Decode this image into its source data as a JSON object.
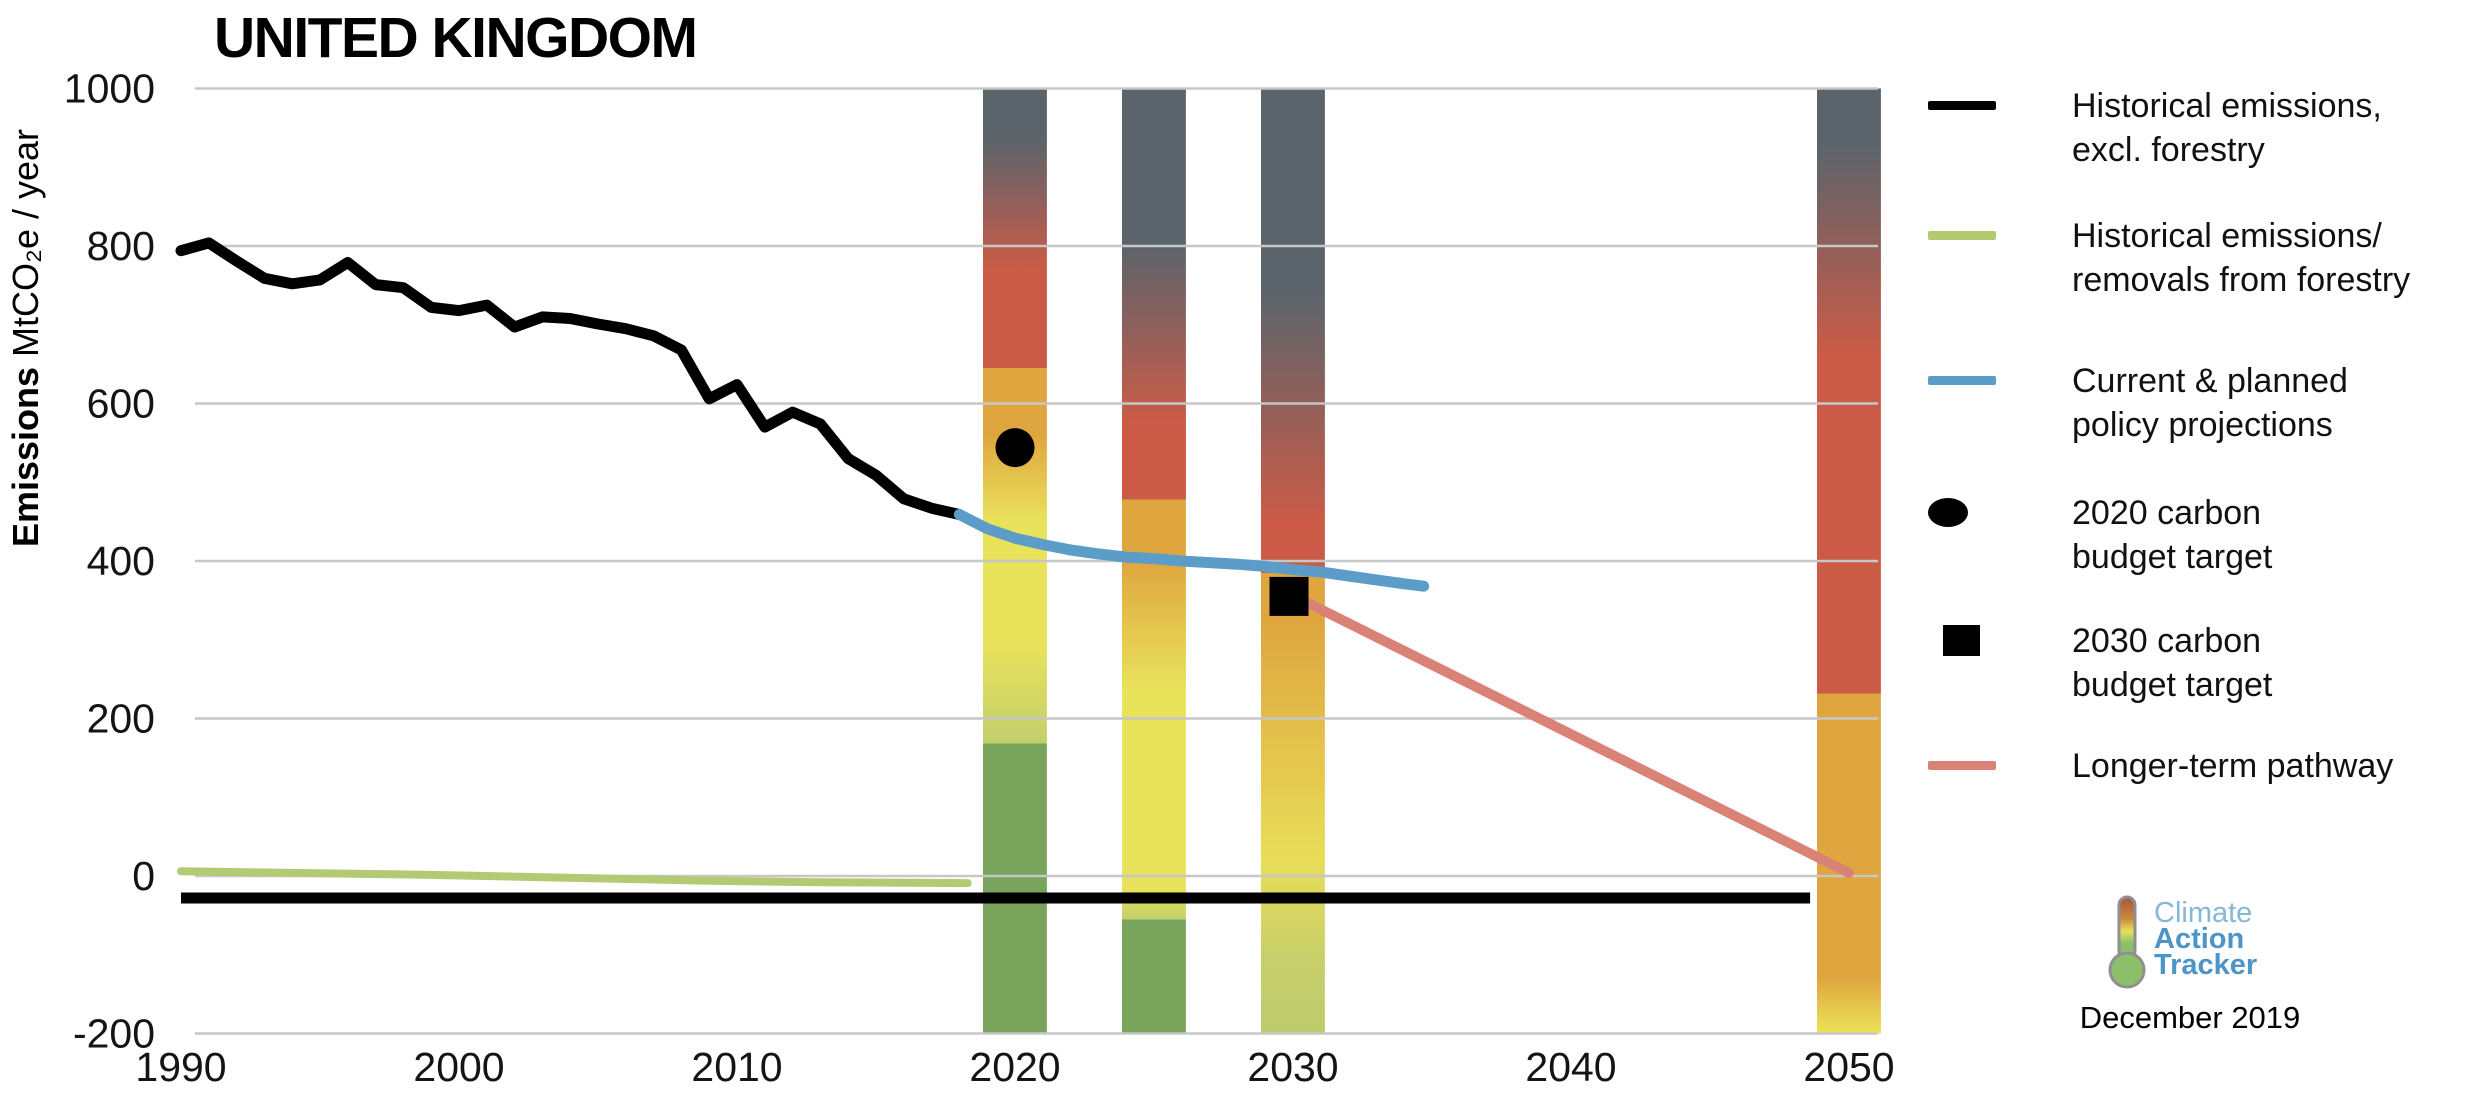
{
  "title": "UNITED KINGDOM",
  "y_axis": {
    "label_bold": "Emissions",
    "label_rest": " MtCO₂e / year"
  },
  "colors": {
    "grid": "#c7c7c7",
    "slate": "#5c646b",
    "red": "#cb5b47",
    "orange": "#dfa63f",
    "yellow": "#e9e25b",
    "yellow_green": "#c2cf6b",
    "green": "#78a45b",
    "historical_black": "#000000",
    "forestry_green": "#b3ca73",
    "projection_blue": "#5b9dc8",
    "pathway_salmon": "#d98376",
    "logo_light_blue": "#85b7d8",
    "logo_blue": "#4d94c7"
  },
  "chart_data": {
    "type": "line",
    "title": "UNITED KINGDOM",
    "ylabel": "Emissions MtCO₂e / year",
    "ylim": [
      -200,
      1000
    ],
    "yticks": [
      1000,
      800,
      600,
      400,
      200,
      0,
      -200
    ],
    "xticks": [
      1990,
      2000,
      2010,
      2020,
      2030,
      2040,
      2050
    ],
    "grid": true,
    "series": [
      {
        "name": "Historical emissions, excl. forestry",
        "color": "#000000",
        "width": 11,
        "points": [
          [
            1990,
            794
          ],
          [
            1991,
            804
          ],
          [
            1992,
            781
          ],
          [
            1993,
            759
          ],
          [
            1994,
            752
          ],
          [
            1995,
            757
          ],
          [
            1996,
            779
          ],
          [
            1997,
            751
          ],
          [
            1998,
            747
          ],
          [
            1999,
            722
          ],
          [
            2000,
            718
          ],
          [
            2001,
            725
          ],
          [
            2002,
            697
          ],
          [
            2003,
            710
          ],
          [
            2004,
            708
          ],
          [
            2005,
            701
          ],
          [
            2006,
            695
          ],
          [
            2007,
            686
          ],
          [
            2008,
            668
          ],
          [
            2009,
            606
          ],
          [
            2010,
            624
          ],
          [
            2011,
            570
          ],
          [
            2012,
            589
          ],
          [
            2013,
            574
          ],
          [
            2014,
            530
          ],
          [
            2015,
            509
          ],
          [
            2016,
            479
          ],
          [
            2017,
            467
          ],
          [
            2018,
            459
          ]
        ]
      },
      {
        "name": "Historical emissions/removals from forestry",
        "color": "#b3ca73",
        "width": 8,
        "points": [
          [
            1990,
            6
          ],
          [
            1994,
            4
          ],
          [
            1998,
            2
          ],
          [
            2001,
            0
          ],
          [
            2005,
            -3
          ],
          [
            2009,
            -6
          ],
          [
            2013,
            -8
          ],
          [
            2018.3,
            -9
          ]
        ]
      },
      {
        "name": "Current & planned policy projections",
        "color": "#5b9dc8",
        "width": 11,
        "points": [
          [
            2018,
            459
          ],
          [
            2019,
            441
          ],
          [
            2020,
            429
          ],
          [
            2021,
            421
          ],
          [
            2022,
            414
          ],
          [
            2023,
            409
          ],
          [
            2024,
            405
          ],
          [
            2025,
            403
          ],
          [
            2026,
            400
          ],
          [
            2027,
            398
          ],
          [
            2028,
            396
          ],
          [
            2029,
            393
          ],
          [
            2030,
            389
          ],
          [
            2031,
            386
          ],
          [
            2032,
            381
          ],
          [
            2033,
            376
          ],
          [
            2034,
            371
          ],
          [
            2034.7,
            368
          ]
        ]
      },
      {
        "name": "Longer-term pathway",
        "color": "#d98376",
        "width": 10,
        "points": [
          [
            2030.3,
            351
          ],
          [
            2050,
            4
          ]
        ]
      }
    ],
    "baseline": {
      "value": -28,
      "from_year": 1990,
      "to_year": 2048.6,
      "color": "#000000",
      "width": 11
    },
    "markers": [
      {
        "name": "2020 carbon budget target",
        "shape": "circle",
        "year": 2020,
        "value": 544
      },
      {
        "name": "2030 carbon budget target",
        "shape": "square",
        "year": 2030,
        "value": 355
      }
    ],
    "bars": {
      "note": "temperature-rating gradient columns, values in MtCO2e/year",
      "span": [
        -200,
        1000
      ],
      "width_years": 2.3,
      "columns": [
        {
          "year": 2020,
          "stops": [
            [
              1000,
              "#5c646b"
            ],
            [
              935,
              "#5c646b"
            ],
            [
              770,
              "#cb5b47"
            ],
            [
              645,
              "#cb5b47"
            ],
            [
              645,
              "#dfa63f"
            ],
            [
              560,
              "#dfa63f"
            ],
            [
              450,
              "#e9e25b"
            ],
            [
              295,
              "#e9e25b"
            ],
            [
              168,
              "#c2cf6b"
            ],
            [
              168,
              "#78a45b"
            ],
            [
              -200,
              "#78a45b"
            ]
          ]
        },
        {
          "year": 2025,
          "stops": [
            [
              1000,
              "#5c646b"
            ],
            [
              800,
              "#5c646b"
            ],
            [
              575,
              "#cb5b47"
            ],
            [
              478,
              "#cb5b47"
            ],
            [
              478,
              "#dfa63f"
            ],
            [
              400,
              "#dfa63f"
            ],
            [
              235,
              "#e9e25b"
            ],
            [
              -20,
              "#e9e25b"
            ],
            [
              -55,
              "#c2cf6b"
            ],
            [
              -55,
              "#78a45b"
            ],
            [
              -200,
              "#78a45b"
            ]
          ]
        },
        {
          "year": 2030,
          "stops": [
            [
              1000,
              "#5c646b"
            ],
            [
              740,
              "#5c646b"
            ],
            [
              448,
              "#cb5b47"
            ],
            [
              385,
              "#cb5b47"
            ],
            [
              385,
              "#dfa63f"
            ],
            [
              325,
              "#dfa63f"
            ],
            [
              20,
              "#e8dd58"
            ],
            [
              -110,
              "#c6cf6a"
            ],
            [
              -200,
              "#bdcb6d"
            ]
          ]
        },
        {
          "year": 2050,
          "stops": [
            [
              1000,
              "#5c646b"
            ],
            [
              928,
              "#5c646b"
            ],
            [
              660,
              "#cb5b47"
            ],
            [
              232,
              "#cb5b47"
            ],
            [
              232,
              "#dfa63f"
            ],
            [
              -130,
              "#dfa63f"
            ],
            [
              -200,
              "#ebe456"
            ]
          ]
        }
      ]
    }
  },
  "legend": {
    "items": [
      {
        "marker": "line",
        "color": "#000000",
        "line1": "Historical emissions,",
        "line2": "excl. forestry"
      },
      {
        "marker": "line",
        "color": "#b3ca73",
        "line1": "Historical emissions/",
        "line2": "removals from forestry"
      },
      {
        "marker": "line",
        "color": "#5b9dc8",
        "line1": "Current & planned",
        "line2": "policy projections"
      },
      {
        "marker": "circle",
        "color": "#000000",
        "line1": "2020 carbon",
        "line2": "budget target"
      },
      {
        "marker": "square",
        "color": "#000000",
        "line1": "2030 carbon",
        "line2": "budget target"
      },
      {
        "marker": "line",
        "color": "#d98376",
        "line1": "Longer-term pathway",
        "line2": ""
      }
    ]
  },
  "logo": {
    "word1": "Climate",
    "word2": "Action",
    "word3": "Tracker",
    "date": "December 2019"
  }
}
